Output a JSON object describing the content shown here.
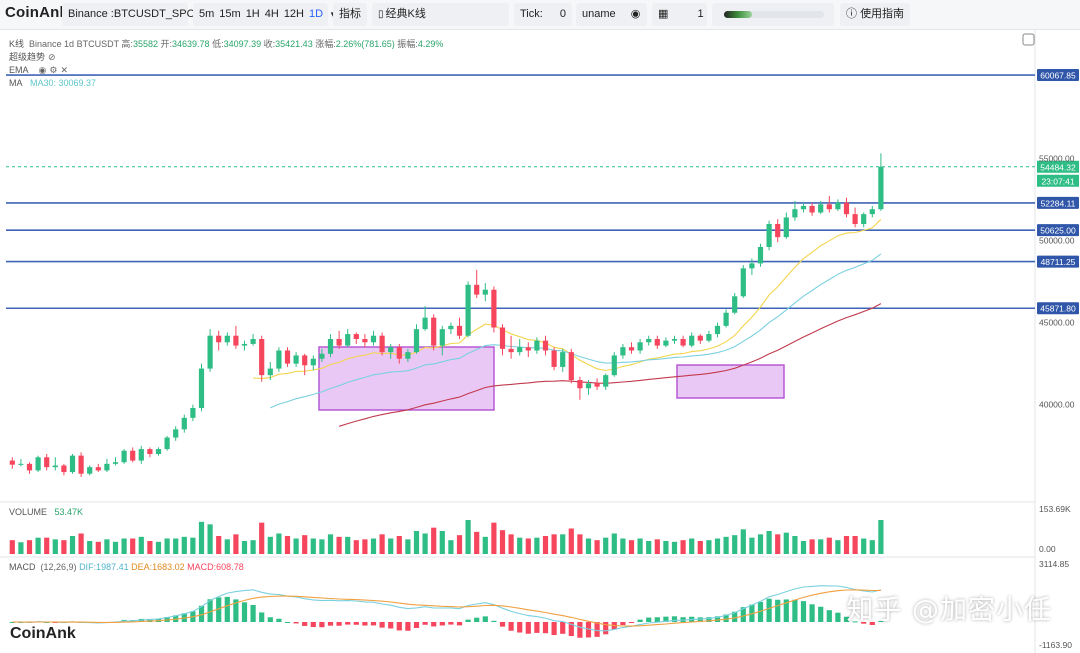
{
  "app": {
    "brand": "CoinAnk"
  },
  "toolbar": {
    "symbol": "Binance :BTCUSDT_SPOT",
    "timeframes": [
      "5m",
      "15m",
      "1H",
      "4H",
      "12H",
      "1D"
    ],
    "active_timeframe": "1D",
    "indicators_label": "指标",
    "chart_type_label": "经典K线",
    "tick_label": "Tick:",
    "tick_value": "0",
    "username": "uname",
    "layout_count": "1",
    "guide_label": "使用指南"
  },
  "legend": {
    "kline": {
      "label": "K线",
      "exchange_tf": "Binance 1d BTCUSDT",
      "high_label": "高:",
      "high": "35582",
      "open_label": "开:",
      "open": "34639.78",
      "low_label": "低:",
      "low": "34097.39",
      "close_label": "收:",
      "close": "35421.43",
      "change_label": "涨幅:",
      "change": "2.26%(781.65)",
      "amp_label": "振幅:",
      "amp": "4.29%"
    },
    "supertrend": "超级趋势",
    "ema": "EMA",
    "ma": "MA",
    "ma30": "MA30: 30069.37",
    "volume": "VOLUME",
    "volume_value": "53.47K",
    "macd": "MACD",
    "macd_params": "(12,26,9)",
    "dif": "DIF:1987.41",
    "dea": "DEA:1683.02",
    "macd_value": "MACD:608.78"
  },
  "price_axis": {
    "ticks": [
      "55000.00",
      "50000.00",
      "45000.00",
      "40000.00"
    ],
    "tick_values": [
      55000,
      50000,
      45000,
      40000
    ],
    "volume_ticks": [
      "153.69K",
      "0.00"
    ],
    "macd_ticks": [
      "3114.85",
      "-1163.90"
    ]
  },
  "hlines": {
    "levels": [
      "60067.85",
      "52284.11",
      "50625.00",
      "48711.25",
      "45871.80"
    ],
    "level_values": [
      60067.85,
      52284.11,
      50625.0,
      48711.25,
      45871.8
    ],
    "last_price": "54484.32",
    "last_price_value": 54484.32,
    "countdown": "23:07:41"
  },
  "colors": {
    "up": "#2ebd85",
    "down": "#f6465d",
    "accent": "#2962ff",
    "hline": "#3f64b8",
    "box_fill": "#e3b5f2",
    "box_stroke": "#b24fd1",
    "ma_short": "#f3d54e",
    "ma_mid": "#7bd0e0",
    "ma_long": "#c23a4e",
    "dif": "#7bd0e0",
    "dea": "#f0a040"
  },
  "watermark": "知乎 @加密小任",
  "chart_data": {
    "type": "candlestick",
    "symbol": "BTCUSDT",
    "interval": "1d",
    "y_range": [
      34200,
      62200
    ],
    "candles": [
      [
        36600,
        36350,
        36800,
        36100
      ],
      [
        36350,
        36400,
        36700,
        36250
      ],
      [
        36400,
        36000,
        36500,
        35800
      ],
      [
        36000,
        36800,
        36900,
        35900
      ],
      [
        36800,
        36200,
        37000,
        36000
      ],
      [
        36200,
        36300,
        36800,
        36000
      ],
      [
        36300,
        35900,
        36400,
        35700
      ],
      [
        35900,
        36900,
        37000,
        35800
      ],
      [
        36900,
        35800,
        37100,
        35600
      ],
      [
        35800,
        36200,
        36300,
        35700
      ],
      [
        36200,
        36000,
        36400,
        35900
      ],
      [
        36000,
        36400,
        36700,
        35900
      ],
      [
        36400,
        36500,
        36800,
        36300
      ],
      [
        36500,
        37200,
        37300,
        36400
      ],
      [
        37200,
        36600,
        37400,
        36500
      ],
      [
        36600,
        37300,
        37500,
        36400
      ],
      [
        37300,
        37000,
        37400,
        36800
      ],
      [
        37000,
        37300,
        37400,
        36900
      ],
      [
        37300,
        38000,
        38100,
        37200
      ],
      [
        38000,
        38500,
        38700,
        37800
      ],
      [
        38500,
        39200,
        39400,
        38300
      ],
      [
        39200,
        39800,
        40000,
        39000
      ],
      [
        39800,
        42200,
        42500,
        39600
      ],
      [
        42200,
        44200,
        44600,
        42000
      ],
      [
        44200,
        43800,
        44500,
        43300
      ],
      [
        43800,
        44200,
        44400,
        43600
      ],
      [
        44200,
        43600,
        44800,
        43400
      ],
      [
        43600,
        43700,
        43900,
        43300
      ],
      [
        43700,
        44000,
        44300,
        43600
      ],
      [
        44000,
        41800,
        44200,
        41400
      ],
      [
        41800,
        42200,
        42600,
        41500
      ],
      [
        42200,
        43300,
        43500,
        42000
      ],
      [
        43300,
        42500,
        43500,
        42300
      ],
      [
        42500,
        43000,
        43200,
        42300
      ],
      [
        43000,
        42400,
        43100,
        41800
      ],
      [
        42400,
        42800,
        43000,
        42100
      ],
      [
        42800,
        43100,
        43400,
        42600
      ],
      [
        43100,
        44000,
        44300,
        42900
      ],
      [
        44000,
        43600,
        44500,
        43400
      ],
      [
        43600,
        44300,
        44600,
        43500
      ],
      [
        44300,
        44000,
        44400,
        43700
      ],
      [
        44000,
        43800,
        44300,
        43500
      ],
      [
        43800,
        44200,
        44500,
        43600
      ],
      [
        44200,
        43200,
        44400,
        43000
      ],
      [
        43200,
        43500,
        43700,
        42800
      ],
      [
        43500,
        42800,
        43700,
        42500
      ],
      [
        42800,
        43200,
        43400,
        42600
      ],
      [
        43200,
        44600,
        44900,
        43100
      ],
      [
        44600,
        45300,
        46000,
        44500
      ],
      [
        45300,
        43600,
        45500,
        43300
      ],
      [
        43600,
        44600,
        44800,
        43000
      ],
      [
        44600,
        44800,
        45000,
        44300
      ],
      [
        44800,
        44200,
        45300,
        44000
      ],
      [
        44200,
        47300,
        47500,
        44100
      ],
      [
        47300,
        46700,
        48200,
        46500
      ],
      [
        46700,
        47000,
        47400,
        46300
      ],
      [
        47000,
        44700,
        47200,
        44400
      ],
      [
        44700,
        43400,
        44900,
        43000
      ],
      [
        43400,
        43200,
        44200,
        42800
      ],
      [
        43200,
        43500,
        44000,
        43000
      ],
      [
        43500,
        43300,
        43800,
        42900
      ],
      [
        43300,
        43900,
        44100,
        43100
      ],
      [
        43900,
        43300,
        44200,
        43000
      ],
      [
        43300,
        42300,
        43500,
        42100
      ],
      [
        42300,
        43200,
        43400,
        42000
      ],
      [
        43200,
        41500,
        43400,
        41300
      ],
      [
        41500,
        41000,
        41700,
        40300
      ],
      [
        41000,
        41300,
        41500,
        40600
      ],
      [
        41300,
        41100,
        41600,
        40900
      ],
      [
        41100,
        41800,
        41900,
        40900
      ],
      [
        41800,
        43000,
        43200,
        41700
      ],
      [
        43000,
        43500,
        43700,
        42800
      ],
      [
        43500,
        43300,
        43800,
        43100
      ],
      [
        43300,
        43800,
        44000,
        43100
      ],
      [
        43800,
        44000,
        44200,
        43600
      ],
      [
        44000,
        43600,
        44200,
        43400
      ],
      [
        43600,
        43900,
        44100,
        43500
      ],
      [
        43900,
        44000,
        44200,
        43700
      ],
      [
        44000,
        43600,
        44200,
        43500
      ],
      [
        43600,
        44200,
        44400,
        43500
      ],
      [
        44200,
        43900,
        44300,
        43700
      ],
      [
        43900,
        44300,
        44500,
        43800
      ],
      [
        44300,
        44800,
        45000,
        44100
      ],
      [
        44800,
        45600,
        45800,
        44700
      ],
      [
        45600,
        46600,
        46800,
        45500
      ],
      [
        46600,
        48300,
        48500,
        46500
      ],
      [
        48300,
        48600,
        48900,
        47900
      ],
      [
        48600,
        49600,
        49800,
        48400
      ],
      [
        49600,
        51000,
        51200,
        49400
      ],
      [
        51000,
        50200,
        51300,
        49900
      ],
      [
        50200,
        51400,
        51700,
        50100
      ],
      [
        51400,
        51900,
        52400,
        51200
      ],
      [
        51900,
        52100,
        52300,
        51700
      ],
      [
        52100,
        51700,
        52300,
        51500
      ],
      [
        51700,
        52200,
        52400,
        51600
      ],
      [
        52200,
        51900,
        52700,
        51700
      ],
      [
        51900,
        52300,
        52500,
        51800
      ],
      [
        52300,
        51600,
        52600,
        51400
      ],
      [
        51600,
        51000,
        52000,
        50800
      ],
      [
        51000,
        51600,
        51700,
        50800
      ],
      [
        51600,
        51900,
        52100,
        51400
      ],
      [
        51900,
        54484,
        55300,
        51800
      ]
    ]
  }
}
